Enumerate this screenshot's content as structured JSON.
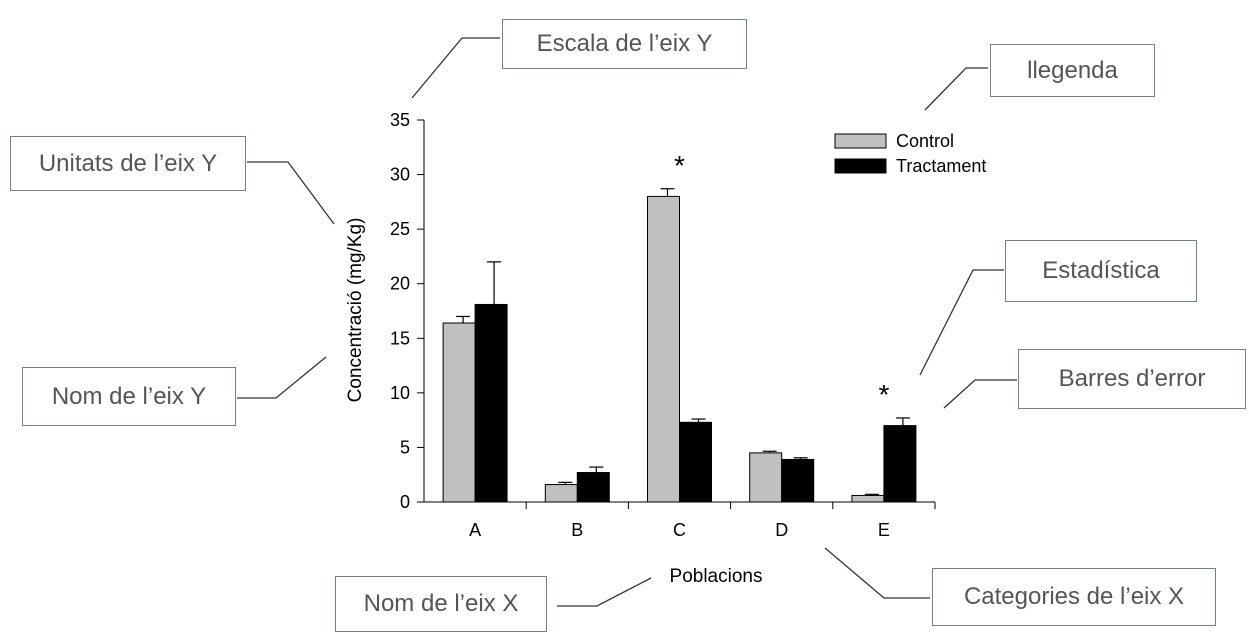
{
  "chart_data": {
    "type": "bar",
    "categories": [
      "A",
      "B",
      "C",
      "D",
      "E"
    ],
    "series": [
      {
        "name": "Control",
        "values": [
          16.4,
          1.6,
          28.0,
          4.5,
          0.6
        ],
        "errors": [
          0.6,
          0.2,
          0.7,
          0.15,
          0.1
        ],
        "color": "#c0c0c0"
      },
      {
        "name": "Tractament",
        "values": [
          18.1,
          2.7,
          7.3,
          3.9,
          7.0
        ],
        "errors": [
          3.9,
          0.5,
          0.3,
          0.15,
          0.7
        ],
        "color": "#000000"
      }
    ],
    "xlabel": "Poblacions",
    "ylabel": "Concentració (mg/Kg)",
    "ylim": [
      0,
      35
    ],
    "yticks": [
      0,
      5,
      10,
      15,
      20,
      25,
      30,
      35
    ],
    "significance": [
      {
        "category": "C",
        "label": "*"
      },
      {
        "category": "E",
        "label": "*"
      }
    ],
    "legend_position": "top-right",
    "grid": false
  },
  "callouts": {
    "y_scale": "Escala de l’eix Y",
    "y_units": "Unitats de l’eix Y",
    "y_name": "Nom de l’eix Y",
    "legend": "llegenda",
    "statistics": "Estadística",
    "error_bars": "Barres d’error",
    "x_name": "Nom de l’eix X",
    "x_categories": "Categories de l’eix X"
  },
  "colors": {
    "callout_border": "#6f8390",
    "callout_text": "#555555",
    "leader_line": "#333333"
  }
}
